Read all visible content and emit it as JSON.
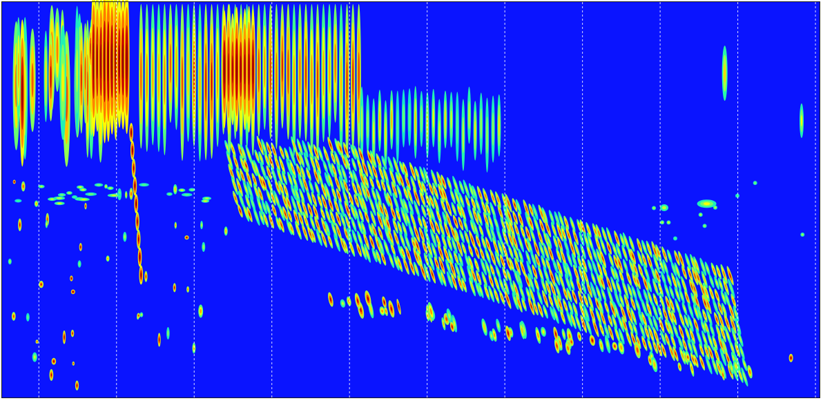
{
  "chart_data": {
    "type": "heatmap",
    "title": "",
    "xlabel": "",
    "ylabel": "",
    "colormap": "jet",
    "colormap_stops": [
      "#0000ff",
      "#00c8ff",
      "#2dff9c",
      "#ffff00",
      "#ff7a00",
      "#c40000",
      "#8b0000"
    ],
    "background_color": "#0a14ff",
    "x_range": [
      0,
      1
    ],
    "y_range": [
      0,
      1
    ],
    "grid": {
      "vertical": true,
      "horizontal": false,
      "style": "dashed",
      "color": "#ffffff"
    },
    "vertical_grid_positions": [
      0.045,
      0.14,
      0.235,
      0.33,
      0.425,
      0.52,
      0.615,
      0.71,
      0.805,
      0.9,
      0.995
    ],
    "features": [
      {
        "name": "onset-bursts",
        "x_start": 0.0,
        "x_end": 0.17,
        "intensity": 0.95
      },
      {
        "name": "saturated-block-1",
        "x_start": 0.11,
        "x_end": 0.15,
        "intensity": 1.0
      },
      {
        "name": "comb-upper-dense",
        "x_start": 0.17,
        "x_end": 0.44,
        "intensity": 0.8
      },
      {
        "name": "saturated-block-2",
        "x_start": 0.27,
        "x_end": 0.31,
        "intensity": 0.95
      },
      {
        "name": "comb-upper-sparse",
        "x_start": 0.44,
        "x_end": 0.61,
        "intensity": 0.5
      },
      {
        "name": "diagonal-band",
        "x_start": 0.28,
        "x_end": 0.99,
        "y_start": 0.38,
        "y_end": 0.93,
        "intensity": 0.65
      },
      {
        "name": "lower-cascade",
        "x_start": 0.4,
        "x_end": 0.93,
        "y_start": 0.75,
        "y_end": 0.97,
        "intensity": 0.55
      },
      {
        "name": "right-sparse-events",
        "x_start": 0.8,
        "x_end": 0.99,
        "intensity": 0.4
      }
    ]
  }
}
